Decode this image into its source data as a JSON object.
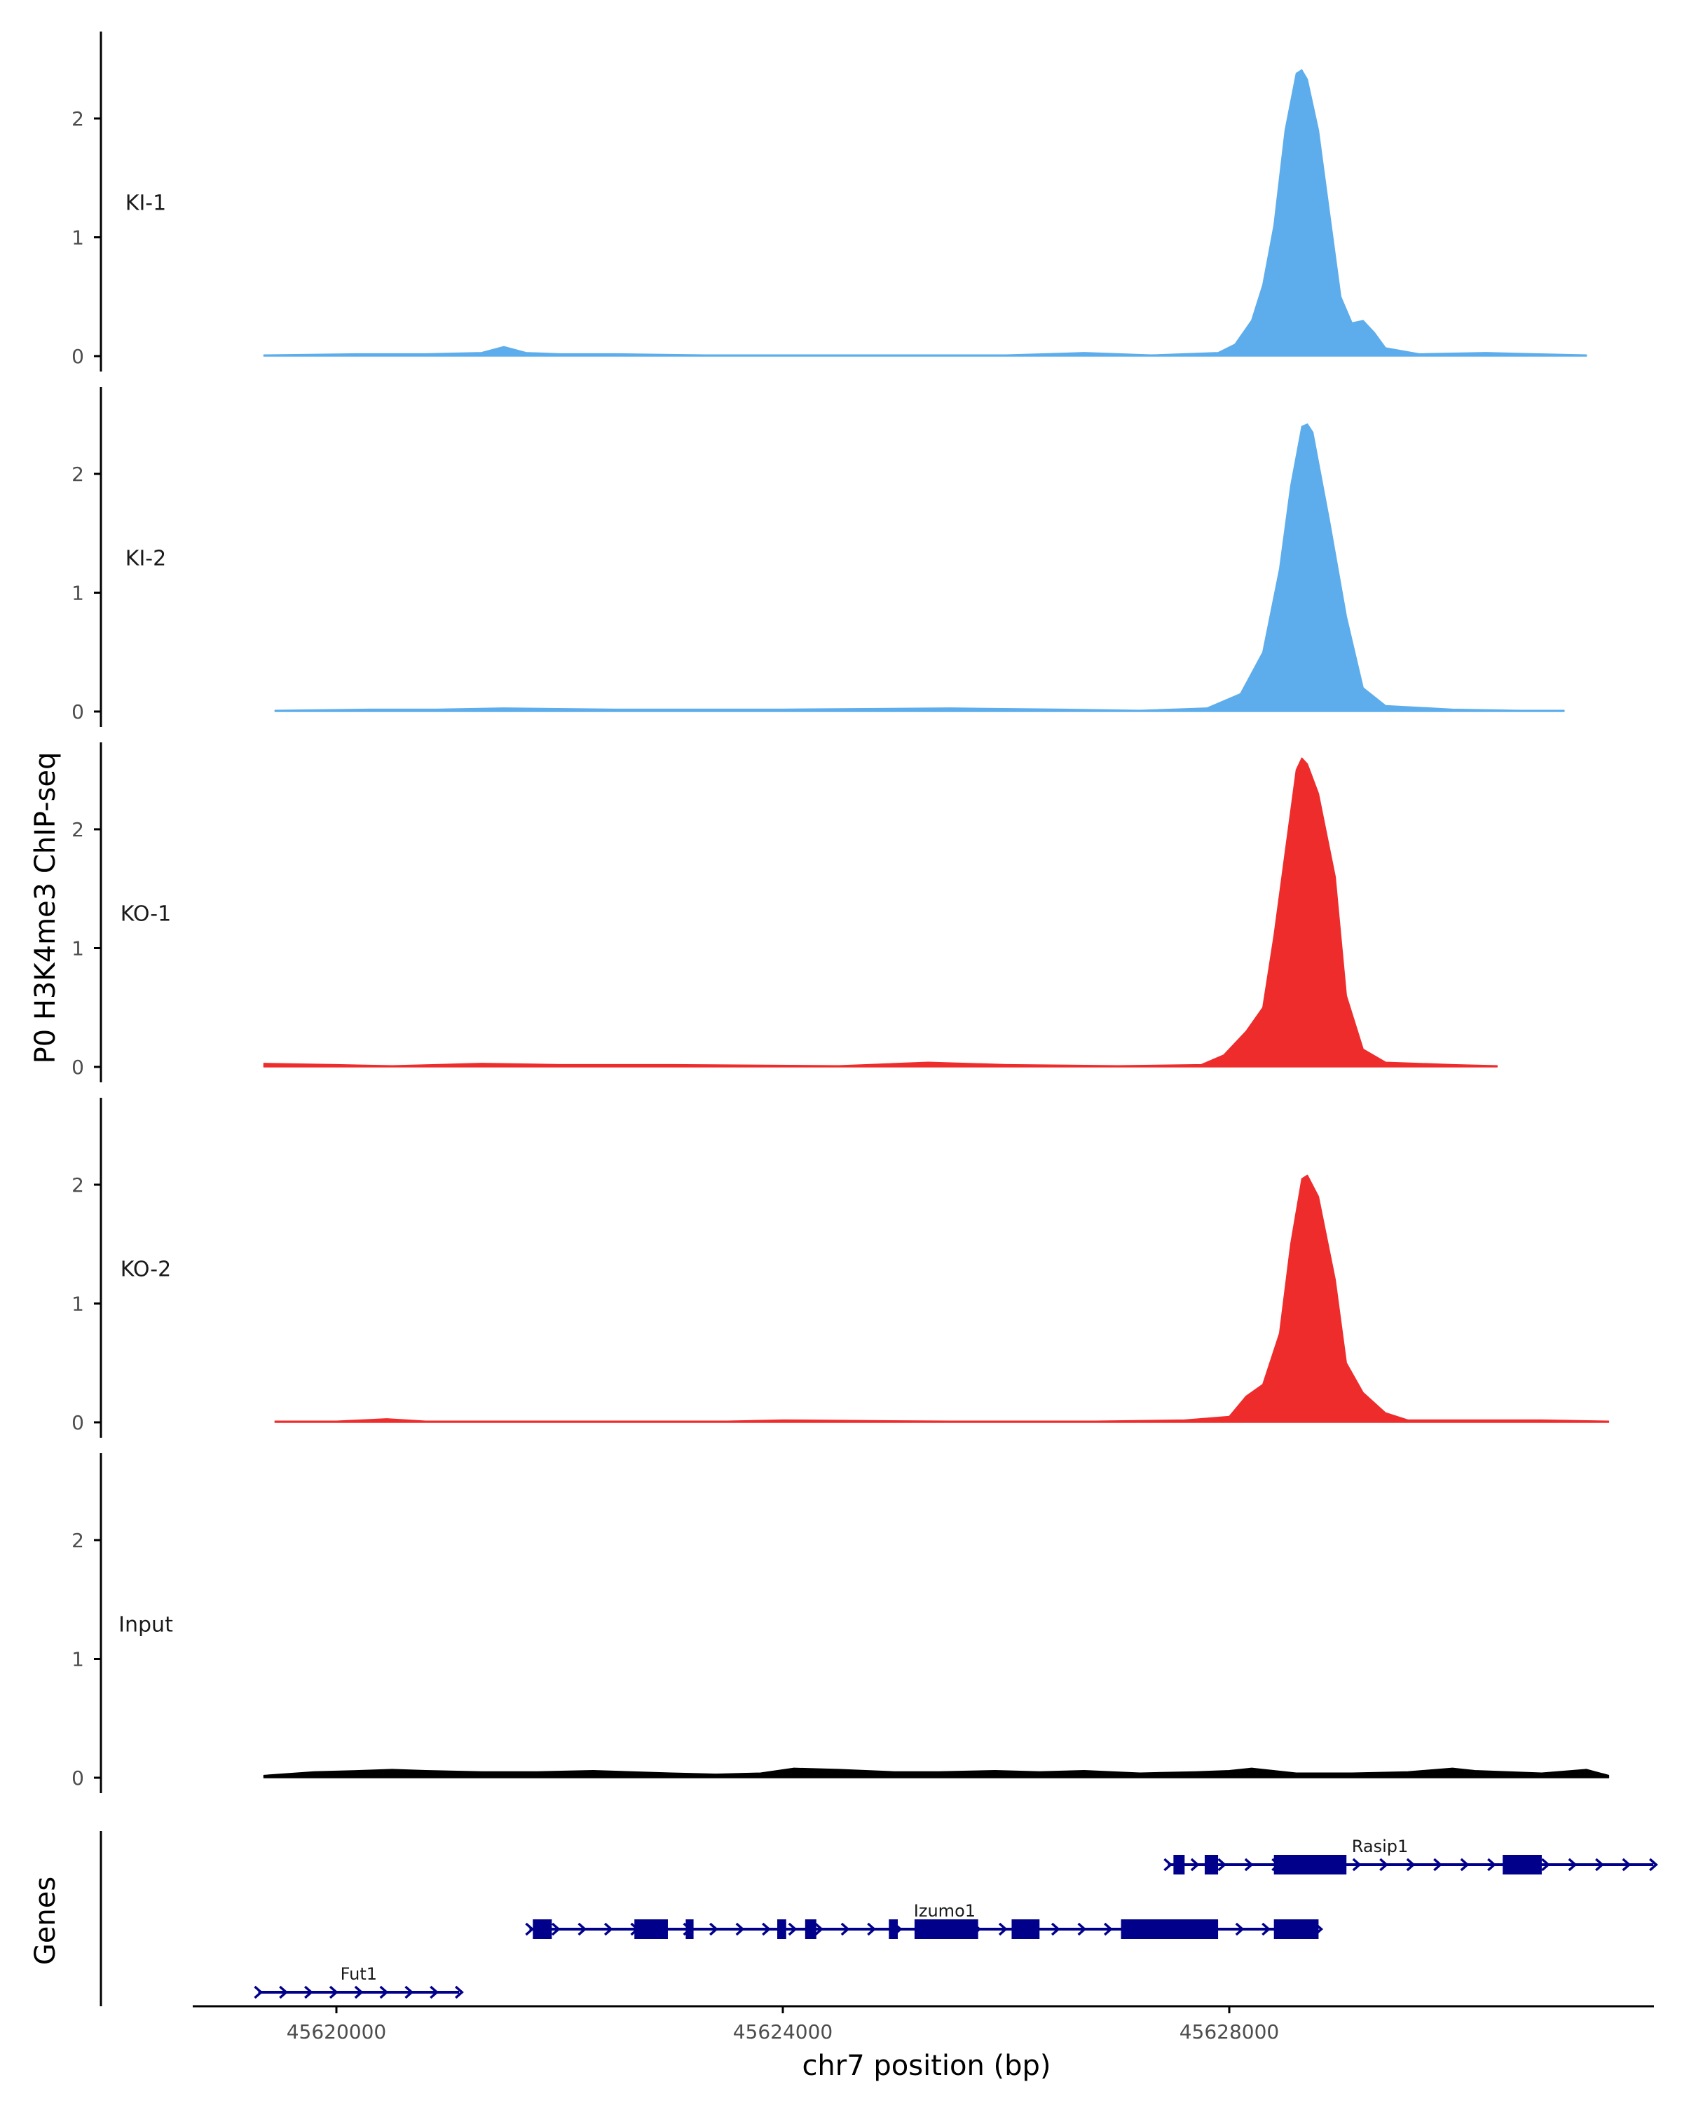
{
  "chart_data": {
    "type": "area",
    "title": "",
    "ylabel": "P0 H3K4me3 ChIP-seq",
    "xlabel": "chr7 position (bp)",
    "xlim": [
      45618700,
      45631900
    ],
    "ylim": [
      0,
      2.7
    ],
    "y_ticks": [
      0,
      1,
      2
    ],
    "x_ticks": [
      {
        "value": 45620000,
        "label": "45620000"
      },
      {
        "value": 45624000,
        "label": "45624000"
      },
      {
        "value": 45628000,
        "label": "45628000"
      }
    ],
    "grid": false,
    "series": [
      {
        "name": "KI-1",
        "color": "#5DADEC",
        "points": [
          [
            45619350,
            0.01
          ],
          [
            45620200,
            0.02
          ],
          [
            45620800,
            0.02
          ],
          [
            45621300,
            0.03
          ],
          [
            45621500,
            0.08
          ],
          [
            45621700,
            0.03
          ],
          [
            45622000,
            0.02
          ],
          [
            45622500,
            0.02
          ],
          [
            45623300,
            0.01
          ],
          [
            45625300,
            0.01
          ],
          [
            45626000,
            0.01
          ],
          [
            45626700,
            0.03
          ],
          [
            45627300,
            0.01
          ],
          [
            45627900,
            0.03
          ],
          [
            45628050,
            0.1
          ],
          [
            45628200,
            0.3
          ],
          [
            45628300,
            0.6
          ],
          [
            45628400,
            1.1
          ],
          [
            45628500,
            1.9
          ],
          [
            45628600,
            2.38
          ],
          [
            45628650,
            2.41
          ],
          [
            45628700,
            2.33
          ],
          [
            45628800,
            1.9
          ],
          [
            45628900,
            1.2
          ],
          [
            45629000,
            0.5
          ],
          [
            45629100,
            0.28
          ],
          [
            45629200,
            0.3
          ],
          [
            45629300,
            0.2
          ],
          [
            45629400,
            0.07
          ],
          [
            45629700,
            0.02
          ],
          [
            45630300,
            0.03
          ],
          [
            45631200,
            0.01
          ]
        ]
      },
      {
        "name": "KI-2",
        "color": "#5DADEC",
        "points": [
          [
            45619450,
            0.01
          ],
          [
            45620300,
            0.02
          ],
          [
            45620900,
            0.02
          ],
          [
            45621500,
            0.03
          ],
          [
            45622500,
            0.02
          ],
          [
            45623000,
            0.02
          ],
          [
            45624000,
            0.02
          ],
          [
            45625500,
            0.03
          ],
          [
            45626500,
            0.02
          ],
          [
            45627200,
            0.01
          ],
          [
            45627800,
            0.03
          ],
          [
            45628100,
            0.15
          ],
          [
            45628300,
            0.5
          ],
          [
            45628450,
            1.2
          ],
          [
            45628550,
            1.9
          ],
          [
            45628650,
            2.4
          ],
          [
            45628700,
            2.42
          ],
          [
            45628750,
            2.35
          ],
          [
            45628900,
            1.6
          ],
          [
            45629050,
            0.8
          ],
          [
            45629200,
            0.2
          ],
          [
            45629400,
            0.05
          ],
          [
            45630000,
            0.02
          ],
          [
            45630600,
            0.01
          ],
          [
            45631000,
            0.01
          ]
        ]
      },
      {
        "name": "KO-1",
        "color": "#EE2C2C",
        "points": [
          [
            45619350,
            0.03
          ],
          [
            45620000,
            0.02
          ],
          [
            45620500,
            0.01
          ],
          [
            45621300,
            0.03
          ],
          [
            45622000,
            0.02
          ],
          [
            45623000,
            0.02
          ],
          [
            45624500,
            0.01
          ],
          [
            45625300,
            0.04
          ],
          [
            45626000,
            0.02
          ],
          [
            45627000,
            0.01
          ],
          [
            45627750,
            0.02
          ],
          [
            45627950,
            0.1
          ],
          [
            45628150,
            0.3
          ],
          [
            45628300,
            0.5
          ],
          [
            45628400,
            1.1
          ],
          [
            45628500,
            1.8
          ],
          [
            45628600,
            2.5
          ],
          [
            45628650,
            2.6
          ],
          [
            45628700,
            2.55
          ],
          [
            45628800,
            2.3
          ],
          [
            45628950,
            1.6
          ],
          [
            45629050,
            0.6
          ],
          [
            45629200,
            0.15
          ],
          [
            45629400,
            0.04
          ],
          [
            45630000,
            0.02
          ],
          [
            45630400,
            0.01
          ]
        ]
      },
      {
        "name": "KO-2",
        "color": "#EE2C2C",
        "points": [
          [
            45619450,
            0.01
          ],
          [
            45620000,
            0.01
          ],
          [
            45620450,
            0.03
          ],
          [
            45620800,
            0.01
          ],
          [
            45621600,
            0.01
          ],
          [
            45622500,
            0.01
          ],
          [
            45623500,
            0.01
          ],
          [
            45624000,
            0.02
          ],
          [
            45625500,
            0.01
          ],
          [
            45626000,
            0.01
          ],
          [
            45626800,
            0.01
          ],
          [
            45627600,
            0.02
          ],
          [
            45628000,
            0.05
          ],
          [
            45628150,
            0.22
          ],
          [
            45628300,
            0.32
          ],
          [
            45628450,
            0.75
          ],
          [
            45628550,
            1.5
          ],
          [
            45628650,
            2.05
          ],
          [
            45628700,
            2.08
          ],
          [
            45628800,
            1.9
          ],
          [
            45628950,
            1.2
          ],
          [
            45629050,
            0.5
          ],
          [
            45629200,
            0.25
          ],
          [
            45629400,
            0.08
          ],
          [
            45629600,
            0.02
          ],
          [
            45630800,
            0.02
          ],
          [
            45631400,
            0.01
          ]
        ]
      },
      {
        "name": "Input",
        "color": "#000000",
        "points": [
          [
            45619350,
            0.02
          ],
          [
            45619800,
            0.05
          ],
          [
            45620200,
            0.06
          ],
          [
            45620500,
            0.07
          ],
          [
            45620800,
            0.06
          ],
          [
            45621300,
            0.05
          ],
          [
            45621800,
            0.05
          ],
          [
            45622300,
            0.06
          ],
          [
            45623000,
            0.04
          ],
          [
            45623400,
            0.03
          ],
          [
            45623800,
            0.04
          ],
          [
            45624100,
            0.08
          ],
          [
            45624500,
            0.07
          ],
          [
            45625000,
            0.05
          ],
          [
            45625400,
            0.05
          ],
          [
            45625900,
            0.06
          ],
          [
            45626300,
            0.05
          ],
          [
            45626700,
            0.06
          ],
          [
            45627200,
            0.04
          ],
          [
            45627700,
            0.05
          ],
          [
            45628000,
            0.06
          ],
          [
            45628200,
            0.08
          ],
          [
            45628600,
            0.04
          ],
          [
            45629100,
            0.04
          ],
          [
            45629600,
            0.05
          ],
          [
            45630000,
            0.08
          ],
          [
            45630200,
            0.06
          ],
          [
            45630500,
            0.05
          ],
          [
            45630800,
            0.04
          ],
          [
            45631200,
            0.07
          ],
          [
            45631400,
            0.02
          ]
        ]
      }
    ],
    "genes_track": {
      "label": "Genes",
      "genes": [
        {
          "name": "Rasip1",
          "row": 0,
          "start": 45627450,
          "end": 45631800,
          "exons": [
            [
              45627500,
              45627600
            ],
            [
              45627780,
              45627900
            ],
            [
              45628400,
              45629050
            ],
            [
              45630450,
              45630800
            ]
          ],
          "label_pos": 45629350
        },
        {
          "name": "Izumo1",
          "row": 1,
          "start": 45621730,
          "end": 45628800,
          "exons": [
            [
              45621760,
              45621930
            ],
            [
              45622670,
              45622970
            ],
            [
              45623130,
              45623200
            ],
            [
              45623950,
              45624030
            ],
            [
              45624200,
              45624300
            ],
            [
              45624950,
              45625030
            ],
            [
              45625180,
              45625750
            ],
            [
              45626050,
              45626300
            ],
            [
              45627030,
              45627900
            ],
            [
              45628400,
              45628800
            ]
          ],
          "label_pos": 45625450
        },
        {
          "name": "Fut1",
          "row": 2,
          "start": 45619300,
          "end": 45621100,
          "exons": [],
          "label_pos": 45620200
        }
      ]
    }
  }
}
